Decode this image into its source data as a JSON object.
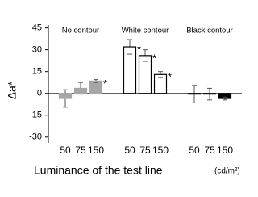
{
  "chart_data": {
    "type": "bar",
    "y_label": "Δa*",
    "x_label": "Luminance of the test line",
    "x_unit": "(cd/m²)",
    "categories": [
      "50",
      "75",
      "150"
    ],
    "series": [
      {
        "name": "No contour",
        "color": "#a6a6a6",
        "edge": "#a6a6a6",
        "values": [
          -3.5,
          3.5,
          8.5
        ],
        "errors": [
          6,
          4,
          1
        ],
        "marks": [
          null,
          null,
          "*"
        ]
      },
      {
        "name": "White contour",
        "color": "#ffffff",
        "edge": "#000000",
        "values": [
          32,
          26,
          13
        ],
        "errors": [
          5,
          4,
          2
        ],
        "marks": [
          "*",
          "*",
          "*"
        ]
      },
      {
        "name": "Black contour",
        "color": "#000000",
        "edge": "#000000",
        "values": [
          -0.5,
          -0.5,
          -3.5
        ],
        "errors": [
          6,
          4,
          1
        ],
        "marks": [
          null,
          null,
          null
        ]
      }
    ],
    "ylim": [
      -34,
      47
    ],
    "yticks": [
      -30,
      -15,
      0,
      15,
      30,
      45
    ],
    "zero_line": true
  }
}
